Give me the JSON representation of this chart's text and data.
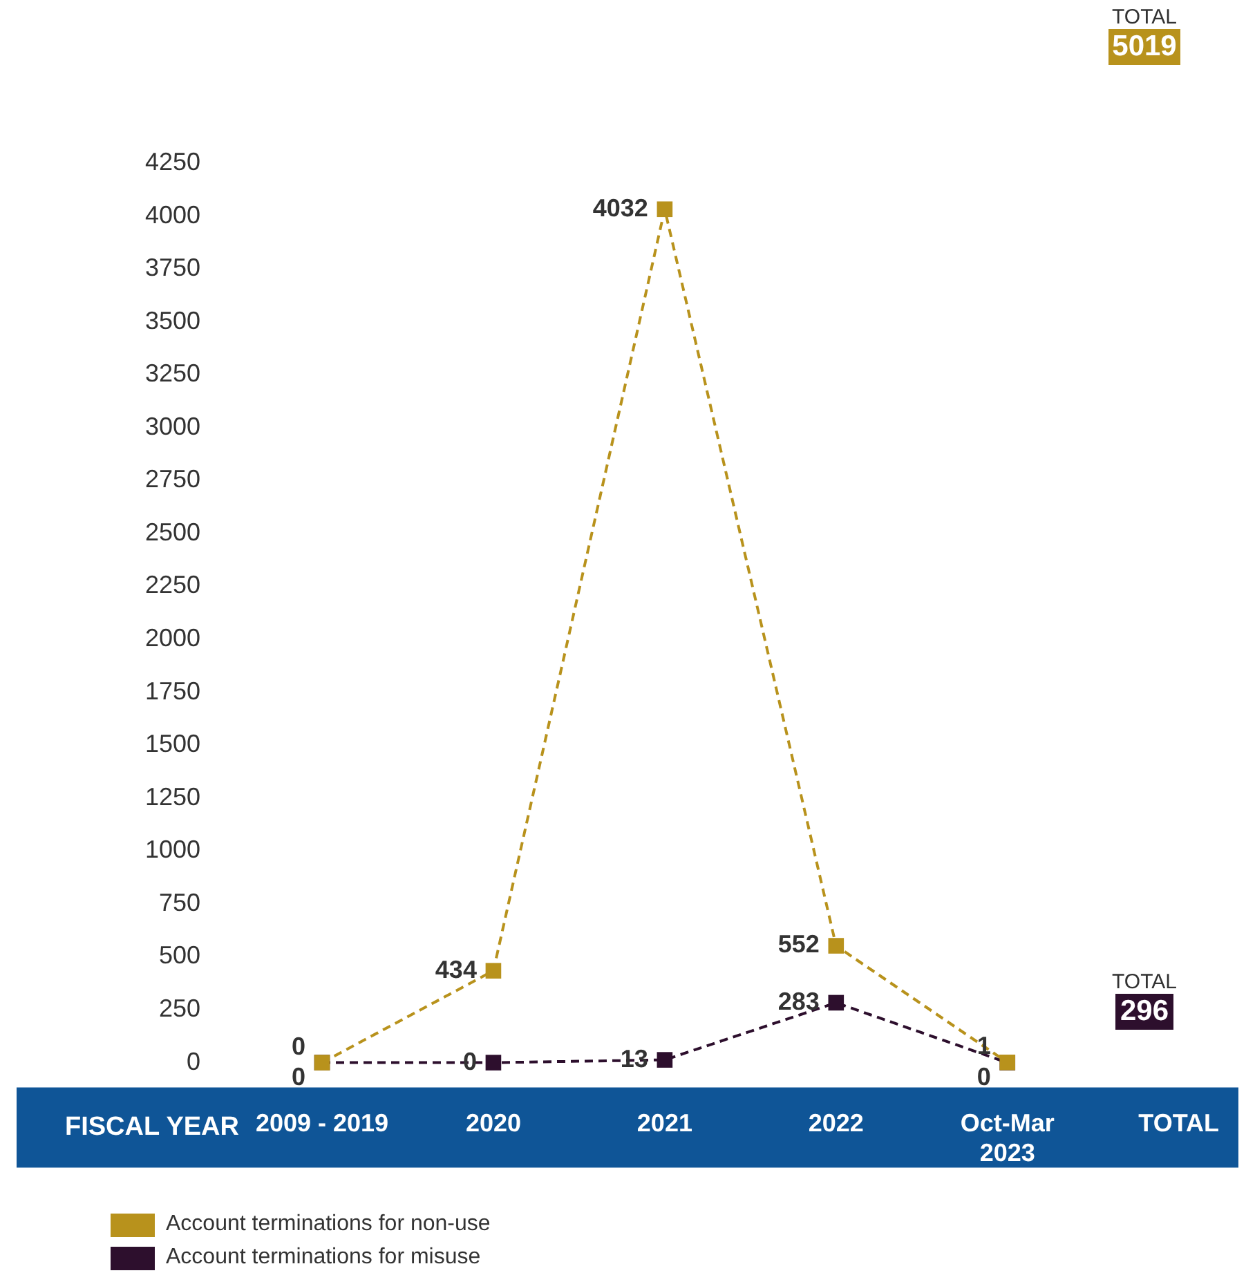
{
  "chart_data": {
    "type": "line",
    "xlabel": "FISCAL YEAR",
    "categories": [
      "2009 - 2019",
      "2020",
      "2021",
      "2022",
      "Oct-Mar\n2023",
      "TOTAL"
    ],
    "series": [
      {
        "name": "Account terminations for non-use",
        "color": "#b8921c",
        "values": [
          0,
          434,
          4032,
          552,
          1,
          null
        ]
      },
      {
        "name": "Account terminations for misuse",
        "color": "#2d0f2d",
        "values": [
          0,
          0,
          13,
          283,
          0,
          null
        ]
      }
    ],
    "ylim": [
      0,
      4250
    ],
    "yticks": [
      0,
      250,
      500,
      750,
      1000,
      1250,
      1500,
      1750,
      2000,
      2250,
      2500,
      2750,
      3000,
      3250,
      3500,
      3750,
      4000,
      4250
    ],
    "grid": false,
    "legend": "bottom left",
    "marker": "square",
    "line_style": "dashed",
    "data_labels": true,
    "annotations": [
      "TOTAL",
      "5019",
      "TOTAL",
      "296"
    ]
  }
}
